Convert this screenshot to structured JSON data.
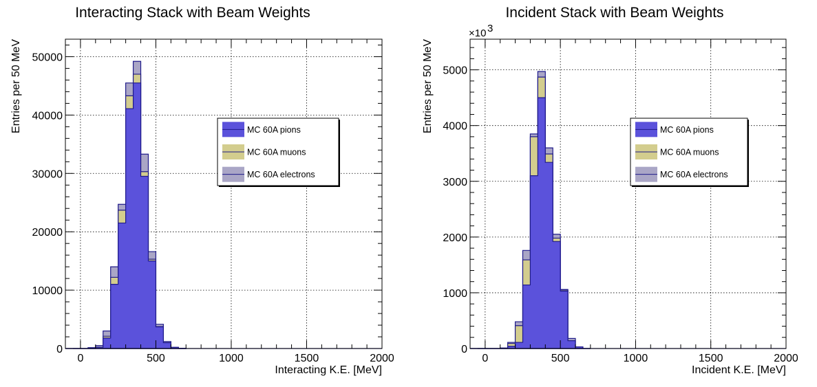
{
  "colors": {
    "pions": "#5b52db",
    "muons": "#d3cd8e",
    "electrons": "#aaa6c6",
    "outline": "#1f1a8a"
  },
  "chart_data": [
    {
      "type": "bar",
      "subtype": "stacked-histogram",
      "title": "Interacting Stack with Beam Weights",
      "xlabel": "Interacting K.E. [MeV]",
      "ylabel": "Entries per 50 MeV",
      "xlim": [
        -100,
        2000
      ],
      "ylim": [
        0,
        53000
      ],
      "x_ticks": [
        0,
        500,
        1000,
        1500,
        2000
      ],
      "y_ticks": [
        0,
        10000,
        20000,
        30000,
        40000,
        50000
      ],
      "y_multiplier": "",
      "grid": true,
      "legend_position": "right-center",
      "bin_width": 50,
      "bin_edges": [
        -100,
        -50,
        0,
        50,
        100,
        150,
        200,
        250,
        300,
        350,
        400,
        450,
        500,
        550,
        600,
        650,
        700
      ],
      "series": [
        {
          "name": "MC 60A pions",
          "color_key": "pions",
          "values": [
            0,
            0,
            0,
            0,
            200,
            1800,
            11000,
            21500,
            41100,
            45500,
            29500,
            15000,
            3700,
            1000,
            200,
            30
          ]
        },
        {
          "name": "MC 60A muons",
          "color_key": "muons",
          "values": [
            0,
            0,
            0,
            0,
            0,
            300,
            1200,
            2200,
            2200,
            1500,
            800,
            300,
            60,
            0,
            0,
            0
          ]
        },
        {
          "name": "MC 60A electrons",
          "color_key": "electrons",
          "values": [
            0,
            0,
            0,
            150,
            300,
            900,
            1800,
            1000,
            2200,
            2200,
            3000,
            1300,
            400,
            200,
            0,
            0
          ]
        }
      ]
    },
    {
      "type": "bar",
      "subtype": "stacked-histogram",
      "title": "Incident Stack with Beam Weights",
      "xlabel": "Incident K.E. [MeV]",
      "ylabel": "Entries per 50 MeV",
      "xlim": [
        -100,
        2000
      ],
      "ylim": [
        0,
        5550
      ],
      "x_ticks": [
        0,
        500,
        1000,
        1500,
        2000
      ],
      "y_ticks": [
        0,
        1000,
        2000,
        3000,
        4000,
        5000
      ],
      "y_multiplier": "×10",
      "y_multiplier_exp": "3",
      "grid": true,
      "legend_position": "right-center",
      "bin_width": 50,
      "bin_edges": [
        -100,
        -50,
        0,
        50,
        100,
        150,
        200,
        250,
        300,
        350,
        400,
        450,
        500,
        550,
        600,
        650,
        700
      ],
      "series": [
        {
          "name": "MC 60A pions",
          "color_key": "pions",
          "values": [
            0,
            0,
            0,
            0,
            0,
            40,
            110,
            1140,
            3100,
            4500,
            3340,
            1920,
            1030,
            140,
            30,
            0
          ]
        },
        {
          "name": "MC 60A muons",
          "color_key": "muons",
          "values": [
            0,
            0,
            0,
            0,
            0,
            50,
            300,
            450,
            700,
            370,
            150,
            60,
            20,
            0,
            0,
            0
          ]
        },
        {
          "name": "MC 60A electrons",
          "color_key": "electrons",
          "values": [
            0,
            0,
            0,
            0,
            10,
            20,
            70,
            170,
            50,
            100,
            110,
            70,
            10,
            40,
            0,
            0
          ]
        }
      ]
    }
  ]
}
